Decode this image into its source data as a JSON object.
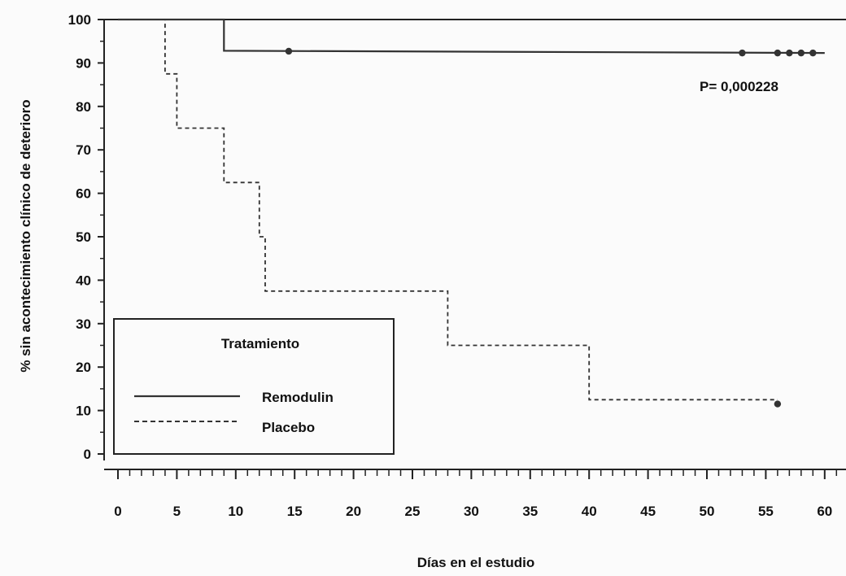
{
  "chart_data": {
    "type": "line",
    "subtype": "kaplan-meier step",
    "xlabel": "Días en el estudio",
    "ylabel": "% sin acontecimiento clínico de deterioro",
    "xlim": [
      0,
      60
    ],
    "ylim": [
      0,
      100
    ],
    "xticks": [
      0,
      5,
      10,
      15,
      20,
      25,
      30,
      35,
      40,
      45,
      50,
      55,
      60
    ],
    "yticks": [
      0,
      10,
      20,
      30,
      40,
      50,
      60,
      70,
      80,
      90,
      100
    ],
    "grid": false,
    "annotation": "P= 0,000228",
    "legend": {
      "title": "Tratamiento",
      "placement": "bottom-left",
      "entries": [
        {
          "label": "Remodulin",
          "style": "solid"
        },
        {
          "label": "Placebo",
          "style": "dashed"
        }
      ]
    },
    "series": [
      {
        "name": "Remodulin",
        "style": "solid",
        "x": [
          0,
          9,
          9,
          60
        ],
        "y": [
          100,
          100,
          92.8,
          92.3
        ],
        "censored": [
          {
            "x": 14.5,
            "y": 92.7
          },
          {
            "x": 53,
            "y": 92.3
          },
          {
            "x": 56,
            "y": 92.3
          },
          {
            "x": 57,
            "y": 92.3
          },
          {
            "x": 58,
            "y": 92.3
          },
          {
            "x": 59,
            "y": 92.3
          }
        ]
      },
      {
        "name": "Placebo",
        "style": "dashed",
        "x": [
          0,
          4,
          4,
          5,
          5,
          9,
          9,
          12,
          12,
          12.5,
          12.5,
          28,
          28,
          40,
          40,
          56
        ],
        "y": [
          100,
          100,
          87.5,
          87.5,
          75,
          75,
          62.5,
          62.5,
          50,
          50,
          37.5,
          37.5,
          25,
          25,
          12.5,
          12.5
        ],
        "censored": [
          {
            "x": 56,
            "y": 11.5
          }
        ]
      }
    ]
  }
}
